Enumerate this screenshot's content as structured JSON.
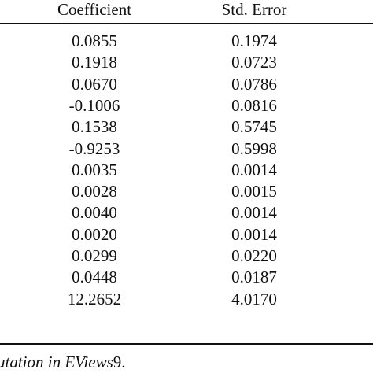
{
  "table": {
    "headers": {
      "coefficient": "Coefficient",
      "std_error": "Std. Error"
    },
    "rows": [
      {
        "coefficient": "0.0855",
        "std_error": "0.1974"
      },
      {
        "coefficient": "0.1918",
        "std_error": "0.0723"
      },
      {
        "coefficient": "0.0670",
        "std_error": "0.0786"
      },
      {
        "coefficient": "-0.1006",
        "std_error": "0.0816"
      },
      {
        "coefficient": "0.1538",
        "std_error": "0.5745"
      },
      {
        "coefficient": "-0.9253",
        "std_error": "0.5998"
      },
      {
        "coefficient": "0.0035",
        "std_error": "0.0014"
      },
      {
        "coefficient": "0.0028",
        "std_error": "0.0015"
      },
      {
        "coefficient": "0.0040",
        "std_error": "0.0014"
      },
      {
        "coefficient": "0.0020",
        "std_error": "0.0014"
      },
      {
        "coefficient": "0.0299",
        "std_error": "0.0220"
      },
      {
        "coefficient": "0.0448",
        "std_error": "0.0187"
      },
      {
        "coefficient": "12.2652",
        "std_error": "4.0170"
      }
    ]
  },
  "footnote": {
    "italic_text": "utation in EViews",
    "plain_text": "9."
  }
}
